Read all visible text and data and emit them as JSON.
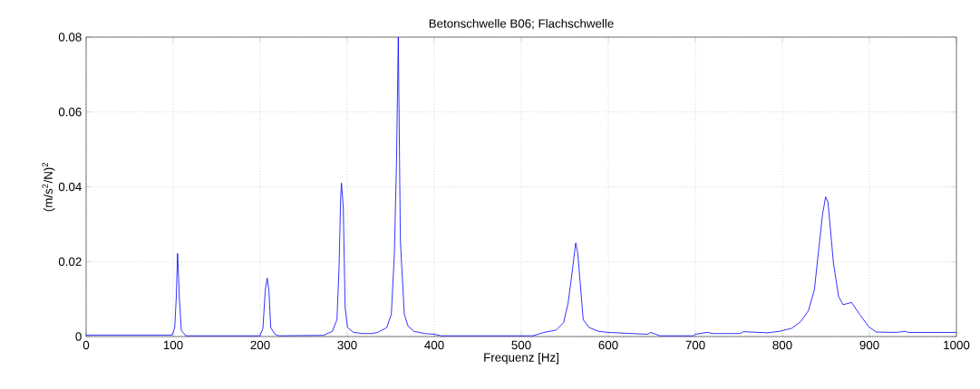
{
  "chart_data": {
    "type": "line",
    "title": "Betonschwelle B06; Flachschwelle",
    "xlabel": "Frequenz [Hz]",
    "ylabel": "(m/s$^{2}$/N)$^{2}$",
    "x": [
      0,
      99,
      101.8,
      103.5,
      105.1,
      107.2,
      109.4,
      114.6,
      199.7,
      203.1,
      205.9,
      208,
      210,
      212.1,
      217,
      221,
      272.6,
      283,
      288.2,
      290.6,
      292.4,
      293.4,
      295.5,
      297.6,
      300.4,
      307.3,
      317.7,
      328.1,
      335,
      345.5,
      350.7,
      354.2,
      356.6,
      358.7,
      361.1,
      365.6,
      369.8,
      376.7,
      388.9,
      400,
      408,
      513.5,
      526,
      540,
      548.6,
      553.8,
      559,
      562.5,
      564.9,
      571.2,
      578,
      588.5,
      599.7,
      645,
      649,
      659,
      698,
      700,
      713.5,
      720.5,
      751.8,
      755,
      782.7,
      796.9,
      810.8,
      821.2,
      829.9,
      836.8,
      842,
      846.2,
      849.7,
      852.4,
      858.7,
      864.6,
      869.8,
      879.5,
      888.9,
      899.3,
      908,
      928.8,
      935,
      940.3,
      945,
      1000
    ],
    "series": [
      {
        "color": "#0000ff",
        "values": [
          0.0004,
          0.0004,
          0.0024,
          0.0101,
          0.0222,
          0.0101,
          0.0016,
          0.0002,
          0.0002,
          0.0021,
          0.0125,
          0.0156,
          0.0125,
          0.0024,
          0.0006,
          0.0002,
          0.0003,
          0.0014,
          0.0045,
          0.0182,
          0.0367,
          0.041,
          0.0343,
          0.0077,
          0.0024,
          0.0011,
          0.0008,
          0.0008,
          0.0011,
          0.0024,
          0.006,
          0.0222,
          0.0464,
          0.08,
          0.0254,
          0.006,
          0.0028,
          0.0014,
          0.0008,
          0.0006,
          0.0002,
          0.0002,
          0.0011,
          0.0017,
          0.0037,
          0.0089,
          0.0182,
          0.025,
          0.0222,
          0.0045,
          0.0024,
          0.0014,
          0.0011,
          0.0006,
          0.0011,
          0.0002,
          0.0002,
          0.0006,
          0.0011,
          0.0008,
          0.0008,
          0.0013,
          0.001,
          0.0014,
          0.0022,
          0.004,
          0.0069,
          0.0125,
          0.0238,
          0.0327,
          0.0373,
          0.0359,
          0.0196,
          0.0107,
          0.0085,
          0.0091,
          0.0059,
          0.0026,
          0.0012,
          0.0011,
          0.0012,
          0.0014,
          0.0011,
          0.0011
        ]
      }
    ],
    "xlim": [
      0,
      1000
    ],
    "ylim": [
      0,
      0.08
    ],
    "xticks": [
      0,
      100,
      200,
      300,
      400,
      500,
      600,
      700,
      800,
      900,
      1000
    ],
    "yticks": [
      0,
      0.02,
      0.04,
      0.06,
      0.08
    ],
    "grid": true,
    "line_style": "solid",
    "marker": "none"
  }
}
